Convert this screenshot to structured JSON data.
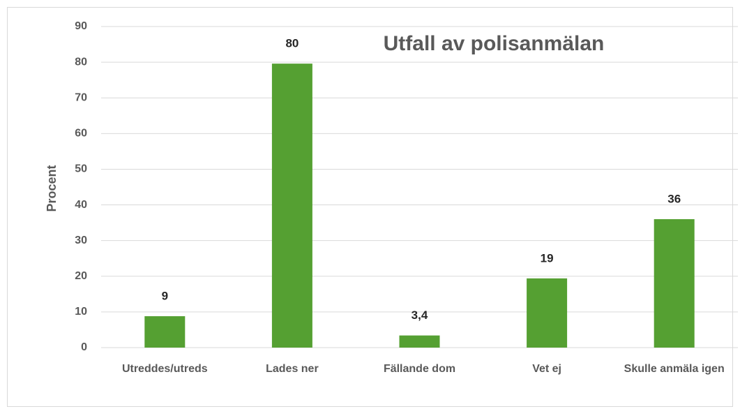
{
  "chart_data": {
    "type": "bar",
    "title": "Utfall av polisanmälan",
    "y_label": "Procent",
    "categories": [
      "Utreddes/utreds",
      "Lades ner",
      "Fällande dom",
      "Vet ej",
      "Skulle anmäla igen"
    ],
    "values": [
      8.8,
      79.6,
      3.4,
      19.4,
      36
    ],
    "value_labels": [
      "9",
      "80",
      "3,4",
      "19",
      "36"
    ],
    "color": "#55a032",
    "ylim": [
      0,
      90
    ],
    "yticks": [
      0,
      10,
      20,
      30,
      40,
      50,
      60,
      70,
      80,
      90
    ],
    "grid": true
  }
}
